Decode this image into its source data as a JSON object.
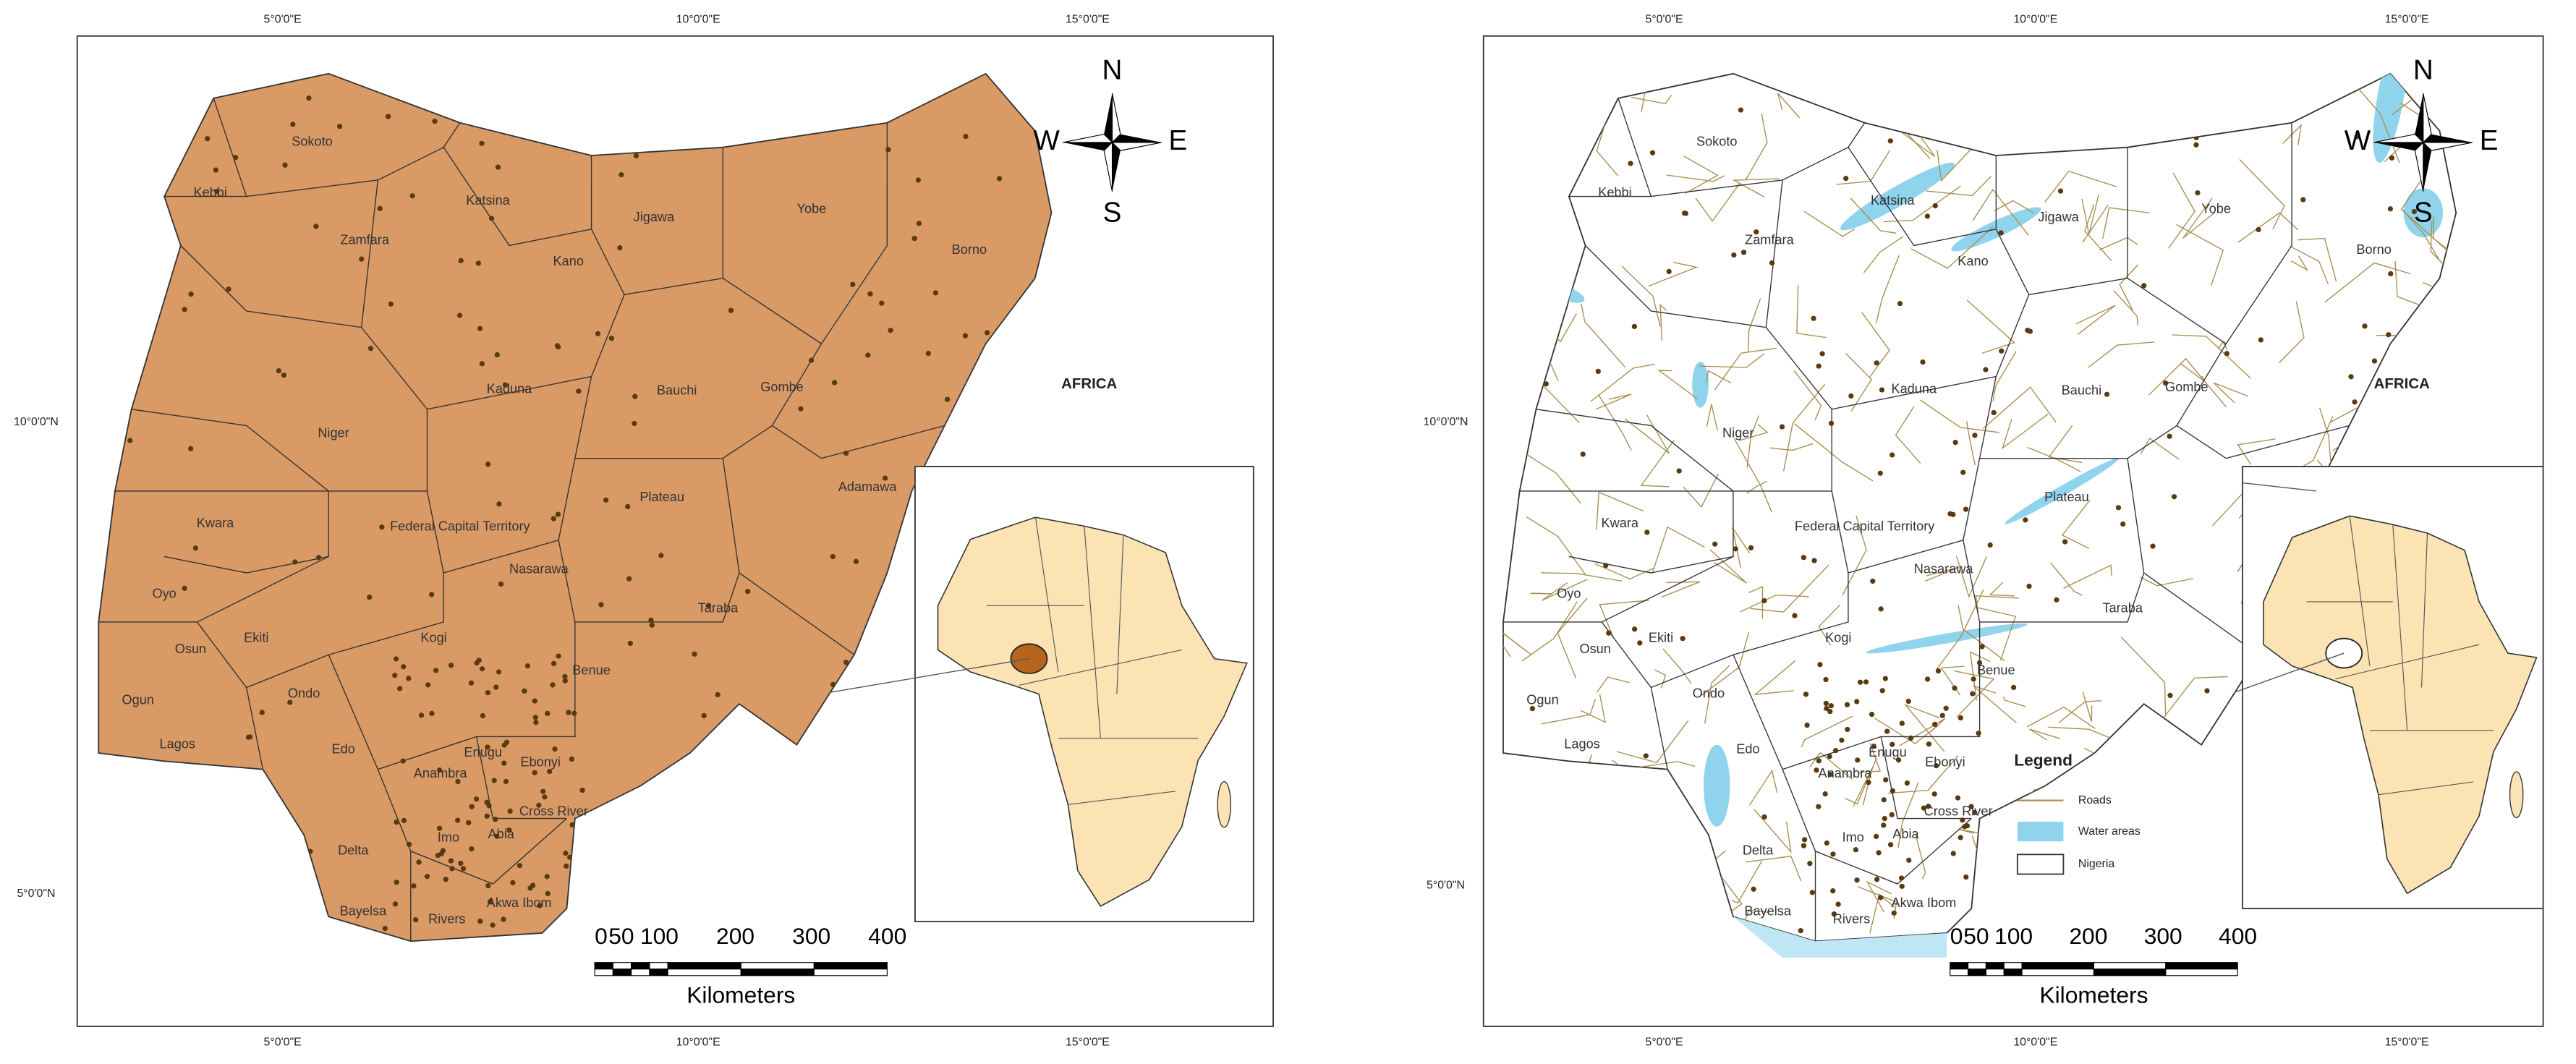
{
  "states": [
    "Sokoto",
    "Kebbi",
    "Zamfara",
    "Katsina",
    "Jigawa",
    "Yobe",
    "Borno",
    "Kano",
    "Kaduna",
    "Bauchi",
    "Gombe",
    "Niger",
    "Adamawa",
    "Plateau",
    "Kwara",
    "Federal Capital Territory",
    "Nasarawa",
    "Oyo",
    "Taraba",
    "Osun",
    "Ekiti",
    "Kogi",
    "Benue",
    "Ogun",
    "Ondo",
    "Lagos",
    "Edo",
    "Enugu",
    "Ebonyi",
    "Anambra",
    "Cross River",
    "Delta",
    "Imo",
    "Abia",
    "Rivers",
    "Akwa Ibom",
    "Bayelsa"
  ],
  "left_map": {
    "graticule": {
      "top": [
        "5°0'0\"E",
        "10°0'0\"E",
        "15°0'0\"E"
      ],
      "bottom": [
        "5°0'0\"E",
        "10°0'0\"E",
        "15°0'0\"E"
      ],
      "left": [
        "10°0'0\"N",
        "5°0'0\"N"
      ]
    },
    "compass": {
      "n": "N",
      "w": "W",
      "e": "E",
      "s": "S"
    },
    "inset_label": "AFRICA",
    "scale_bar": {
      "ticks": [
        "0",
        "50",
        "100",
        "200",
        "300",
        "400"
      ],
      "unit": "Kilometers"
    }
  },
  "right_map": {
    "graticule": {
      "top": [
        "5°0'0\"E",
        "10°0'0\"E",
        "15°0'0\"E"
      ],
      "bottom": [
        "5°0'0\"E",
        "10°0'0\"E",
        "15°0'0\"E"
      ],
      "left": [
        "10°0'0\"N",
        "5°0'0\"N"
      ]
    },
    "compass": {
      "n": "N",
      "w": "W",
      "e": "E",
      "s": "S"
    },
    "inset_label": "AFRICA",
    "scale_bar": {
      "ticks": [
        "0",
        "50",
        "100",
        "200",
        "300",
        "400"
      ],
      "unit": "Kilometers"
    },
    "legend": {
      "title": "Legend",
      "items": [
        "Roads",
        "Water areas",
        "Nigeria"
      ]
    }
  }
}
